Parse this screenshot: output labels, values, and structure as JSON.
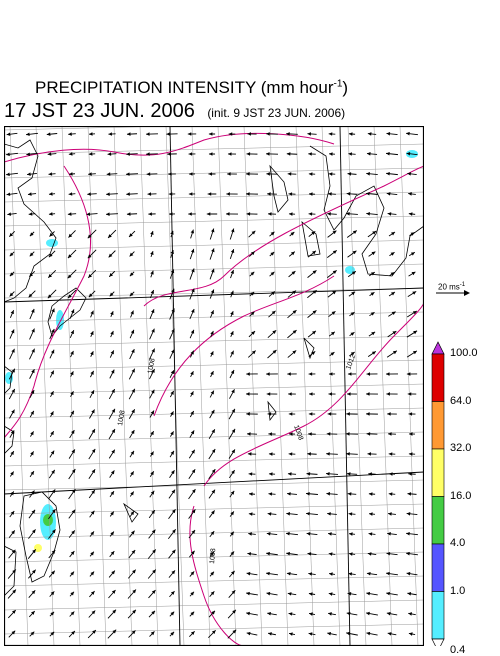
{
  "title": {
    "text": "PRECIPITATION INTENSITY (mm hour",
    "sup": "-1",
    "close": ")"
  },
  "subtitle": {
    "main": "17 JST 23 JUN. 2006",
    "init": "(init. 9 JST 23 JUN. 2006)"
  },
  "vector_scale": {
    "value": "20 ms",
    "sup": "-1"
  },
  "legend": {
    "levels": [
      "100.0",
      "64.0",
      "32.0",
      "16.0",
      "4.0",
      "1.0",
      "0.4"
    ],
    "colors": [
      "#dd0000",
      "#ff9933",
      "#ffff66",
      "#44cc44",
      "#5555ff",
      "#55eeff"
    ],
    "over_color": "#bb33dd",
    "under_color": "#ffffff"
  },
  "isobars": [
    {
      "label": "1008"
    },
    {
      "label": "1008"
    },
    {
      "label": "1008"
    },
    {
      "label": "1008"
    },
    {
      "label": "1012"
    }
  ],
  "map_colors": {
    "isobar": "#cc0077",
    "grid": "#999999",
    "coast": "#000000",
    "frame": "#000000"
  }
}
